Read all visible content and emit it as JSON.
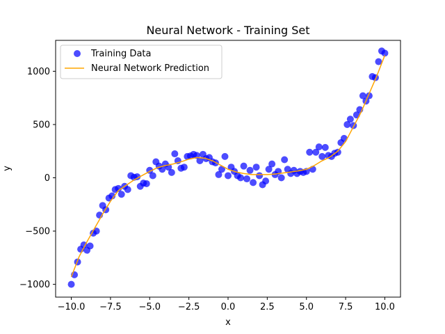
{
  "chart_data": {
    "type": "scatter",
    "title": "Neural Network - Training Set",
    "xlabel": "x",
    "ylabel": "y",
    "xlim": [
      -11,
      11
    ],
    "ylim": [
      -1120,
      1290
    ],
    "xticks": [
      -10,
      -7.5,
      -5,
      -2.5,
      0,
      2.5,
      5,
      7.5,
      10
    ],
    "xtick_labels": [
      "−10.0",
      "−7.5",
      "−5.0",
      "−2.5",
      "0.0",
      "2.5",
      "5.0",
      "7.5",
      "10.0"
    ],
    "yticks": [
      -1000,
      -500,
      0,
      500,
      1000
    ],
    "ytick_labels": [
      "−1000",
      "−500",
      "0",
      "500",
      "1000"
    ],
    "grid": false,
    "legend_position": "top-left",
    "colors": {
      "scatter": "#0000ff",
      "line": "#ffa500"
    },
    "series": [
      {
        "name": "Training Data",
        "kind": "scatter",
        "x": [
          -10.0,
          -9.8,
          -9.6,
          -9.4,
          -9.2,
          -9.0,
          -8.8,
          -8.6,
          -8.4,
          -8.2,
          -8.0,
          -7.8,
          -7.6,
          -7.4,
          -7.2,
          -7.0,
          -6.8,
          -6.6,
          -6.4,
          -6.2,
          -6.0,
          -5.8,
          -5.6,
          -5.4,
          -5.2,
          -5.0,
          -4.8,
          -4.6,
          -4.4,
          -4.2,
          -4.0,
          -3.8,
          -3.6,
          -3.4,
          -3.2,
          -3.0,
          -2.8,
          -2.6,
          -2.4,
          -2.2,
          -2.0,
          -1.8,
          -1.6,
          -1.4,
          -1.2,
          -1.0,
          -0.8,
          -0.6,
          -0.4,
          -0.2,
          0.0,
          0.2,
          0.4,
          0.6,
          0.8,
          1.0,
          1.2,
          1.4,
          1.6,
          1.8,
          2.0,
          2.2,
          2.4,
          2.6,
          2.8,
          3.0,
          3.2,
          3.4,
          3.6,
          3.8,
          4.0,
          4.2,
          4.4,
          4.6,
          4.8,
          5.0,
          5.2,
          5.4,
          5.6,
          5.8,
          6.0,
          6.2,
          6.4,
          6.6,
          6.8,
          7.0,
          7.2,
          7.4,
          7.6,
          7.8,
          8.0,
          8.2,
          8.4,
          8.6,
          8.8,
          9.0,
          9.2,
          9.4,
          9.6,
          9.8,
          10.0
        ],
        "y": [
          -1000,
          -910,
          -790,
          -670,
          -630,
          -680,
          -640,
          -520,
          -500,
          -350,
          -260,
          -300,
          -190,
          -170,
          -110,
          -100,
          -155,
          -80,
          -110,
          20,
          5,
          10,
          -80,
          -50,
          -55,
          70,
          20,
          150,
          110,
          80,
          130,
          100,
          50,
          225,
          160,
          90,
          100,
          200,
          205,
          220,
          210,
          160,
          220,
          180,
          190,
          150,
          140,
          30,
          80,
          200,
          20,
          100,
          60,
          20,
          0,
          110,
          -10,
          70,
          -45,
          100,
          20,
          -65,
          -30,
          80,
          130,
          30,
          60,
          0,
          170,
          80,
          40,
          70,
          40,
          60,
          50,
          60,
          240,
          80,
          240,
          290,
          200,
          285,
          210,
          200,
          230,
          240,
          330,
          370,
          500,
          550,
          490,
          590,
          640,
          770,
          720,
          770,
          950,
          940,
          1090,
          1190,
          1170
        ]
      },
      {
        "name": "Neural Network Prediction",
        "kind": "line",
        "x": [
          -10.0,
          -9.5,
          -9.0,
          -8.5,
          -8.0,
          -7.5,
          -7.0,
          -6.5,
          -6.0,
          -5.5,
          -5.0,
          -4.5,
          -4.0,
          -3.5,
          -3.0,
          -2.5,
          -2.0,
          -1.5,
          -1.0,
          -0.5,
          0.0,
          0.5,
          1.0,
          1.5,
          2.0,
          2.5,
          3.0,
          3.5,
          4.0,
          4.5,
          5.0,
          5.5,
          6.0,
          6.5,
          7.0,
          7.5,
          8.0,
          8.5,
          9.0,
          9.5,
          10.0
        ],
        "y": [
          -930,
          -740,
          -600,
          -470,
          -340,
          -220,
          -120,
          -70,
          -20,
          20,
          60,
          95,
          115,
          130,
          150,
          175,
          190,
          185,
          160,
          120,
          80,
          55,
          40,
          30,
          30,
          30,
          35,
          45,
          55,
          65,
          80,
          115,
          160,
          195,
          250,
          340,
          480,
          620,
          790,
          960,
          1150
        ]
      }
    ]
  }
}
